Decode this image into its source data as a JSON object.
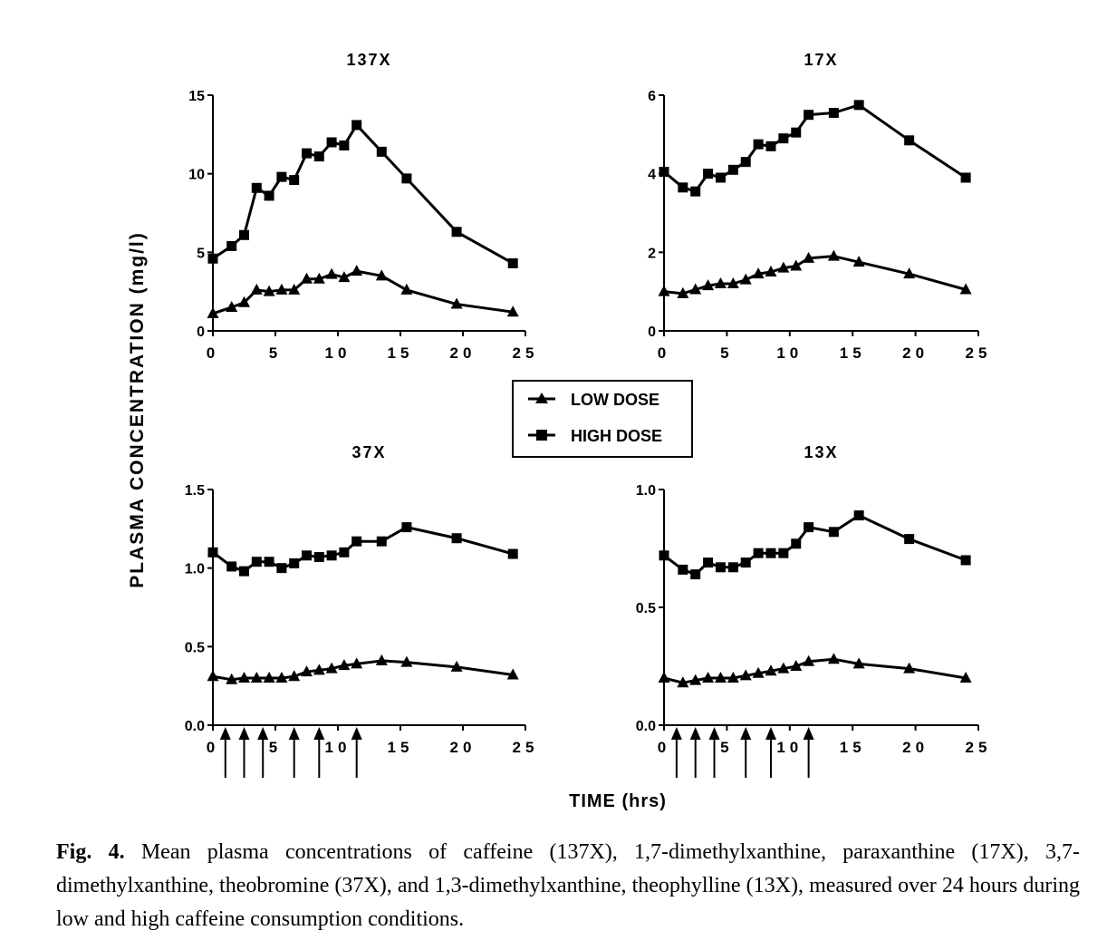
{
  "figure": {
    "ylabel": "PLASMA CONCENTRATION (mg/l)",
    "xlabel": "TIME (hrs)",
    "caption_lead": "Fig. 4.",
    "caption_text": " Mean plasma concentrations of caffeine (137X), 1,7-dimethylxanthine, paraxanthine (17X), 3,7-dimethylxanthine, theobromine (37X), and 1,3-dimethylxanthine, theophylline (13X), measured over 24 hours during low and high caffeine consumption conditions."
  },
  "legend": [
    {
      "label": "LOW DOSE",
      "marker": "triangle"
    },
    {
      "label": "HIGH DOSE",
      "marker": "square"
    }
  ],
  "chart_data": [
    {
      "type": "line",
      "title": "137X",
      "xlabel": "TIME (hrs)",
      "ylabel": "PLASMA CONCENTRATION (mg/l)",
      "xlim": [
        0,
        25
      ],
      "ylim": [
        0,
        15
      ],
      "xticks": [
        0,
        5,
        10,
        15,
        20,
        25
      ],
      "yticks": [
        0,
        5,
        10,
        15
      ],
      "yticklabels": [
        "0",
        "5",
        "10",
        "15"
      ],
      "x": [
        0,
        1.5,
        2.5,
        3.5,
        4.5,
        5.5,
        6.5,
        7.5,
        8.5,
        9.5,
        10.5,
        11.5,
        13.5,
        15.5,
        19.5,
        24
      ],
      "series": [
        {
          "name": "LOW DOSE",
          "marker": "triangle",
          "values": [
            1.1,
            1.5,
            1.8,
            2.6,
            2.5,
            2.6,
            2.6,
            3.3,
            3.3,
            3.6,
            3.4,
            3.8,
            3.5,
            2.6,
            1.7,
            1.2
          ]
        },
        {
          "name": "HIGH DOSE",
          "marker": "square",
          "values": [
            4.6,
            5.4,
            6.1,
            9.1,
            8.6,
            9.8,
            9.6,
            11.3,
            11.1,
            12.0,
            11.8,
            13.1,
            11.4,
            9.7,
            6.3,
            4.3
          ]
        }
      ],
      "arrows": []
    },
    {
      "type": "line",
      "title": "17X",
      "xlabel": "TIME (hrs)",
      "ylabel": "PLASMA CONCENTRATION (mg/l)",
      "xlim": [
        0,
        25
      ],
      "ylim": [
        0,
        6
      ],
      "xticks": [
        0,
        5,
        10,
        15,
        20,
        25
      ],
      "yticks": [
        0,
        2,
        4,
        6
      ],
      "yticklabels": [
        "0",
        "2",
        "4",
        "6"
      ],
      "x": [
        0,
        1.5,
        2.5,
        3.5,
        4.5,
        5.5,
        6.5,
        7.5,
        8.5,
        9.5,
        10.5,
        11.5,
        13.5,
        15.5,
        19.5,
        24
      ],
      "series": [
        {
          "name": "LOW DOSE",
          "marker": "triangle",
          "values": [
            1.0,
            0.95,
            1.05,
            1.15,
            1.2,
            1.2,
            1.3,
            1.45,
            1.5,
            1.6,
            1.65,
            1.85,
            1.9,
            1.75,
            1.45,
            1.05
          ]
        },
        {
          "name": "HIGH DOSE",
          "marker": "square",
          "values": [
            4.05,
            3.65,
            3.55,
            4.0,
            3.9,
            4.1,
            4.3,
            4.75,
            4.7,
            4.9,
            5.05,
            5.5,
            5.55,
            5.75,
            4.85,
            3.9
          ]
        }
      ],
      "arrows": []
    },
    {
      "type": "line",
      "title": "37X",
      "xlabel": "TIME (hrs)",
      "ylabel": "PLASMA CONCENTRATION (mg/l)",
      "xlim": [
        0,
        25
      ],
      "ylim": [
        0,
        1.5
      ],
      "xticks": [
        0,
        5,
        10,
        15,
        20,
        25
      ],
      "yticks": [
        0,
        0.5,
        1.0,
        1.5
      ],
      "yticklabels": [
        "0.0",
        "0.5",
        "1.0",
        "1.5"
      ],
      "x": [
        0,
        1.5,
        2.5,
        3.5,
        4.5,
        5.5,
        6.5,
        7.5,
        8.5,
        9.5,
        10.5,
        11.5,
        13.5,
        15.5,
        19.5,
        24
      ],
      "series": [
        {
          "name": "LOW DOSE",
          "marker": "triangle",
          "values": [
            0.31,
            0.29,
            0.3,
            0.3,
            0.3,
            0.3,
            0.31,
            0.34,
            0.35,
            0.36,
            0.38,
            0.39,
            0.41,
            0.4,
            0.37,
            0.32
          ]
        },
        {
          "name": "HIGH DOSE",
          "marker": "square",
          "values": [
            1.1,
            1.01,
            0.98,
            1.04,
            1.04,
            1.0,
            1.03,
            1.08,
            1.07,
            1.08,
            1.1,
            1.17,
            1.17,
            1.26,
            1.19,
            1.09
          ]
        }
      ],
      "arrows": [
        1,
        2.5,
        4,
        6.5,
        8.5,
        11.5
      ]
    },
    {
      "type": "line",
      "title": "13X",
      "xlabel": "TIME (hrs)",
      "ylabel": "PLASMA CONCENTRATION (mg/l)",
      "xlim": [
        0,
        25
      ],
      "ylim": [
        0,
        1.0
      ],
      "xticks": [
        0,
        5,
        10,
        15,
        20,
        25
      ],
      "yticks": [
        0,
        0.5,
        1.0
      ],
      "yticklabels": [
        "0.0",
        "0.5",
        "1.0"
      ],
      "x": [
        0,
        1.5,
        2.5,
        3.5,
        4.5,
        5.5,
        6.5,
        7.5,
        8.5,
        9.5,
        10.5,
        11.5,
        13.5,
        15.5,
        19.5,
        24
      ],
      "series": [
        {
          "name": "LOW DOSE",
          "marker": "triangle",
          "values": [
            0.2,
            0.18,
            0.19,
            0.2,
            0.2,
            0.2,
            0.21,
            0.22,
            0.23,
            0.24,
            0.25,
            0.27,
            0.28,
            0.26,
            0.24,
            0.2
          ]
        },
        {
          "name": "HIGH DOSE",
          "marker": "square",
          "values": [
            0.72,
            0.66,
            0.64,
            0.69,
            0.67,
            0.67,
            0.69,
            0.73,
            0.73,
            0.73,
            0.77,
            0.84,
            0.82,
            0.89,
            0.79,
            0.7
          ]
        }
      ],
      "arrows": [
        1,
        2.5,
        4,
        6.5,
        8.5,
        11.5
      ]
    }
  ]
}
